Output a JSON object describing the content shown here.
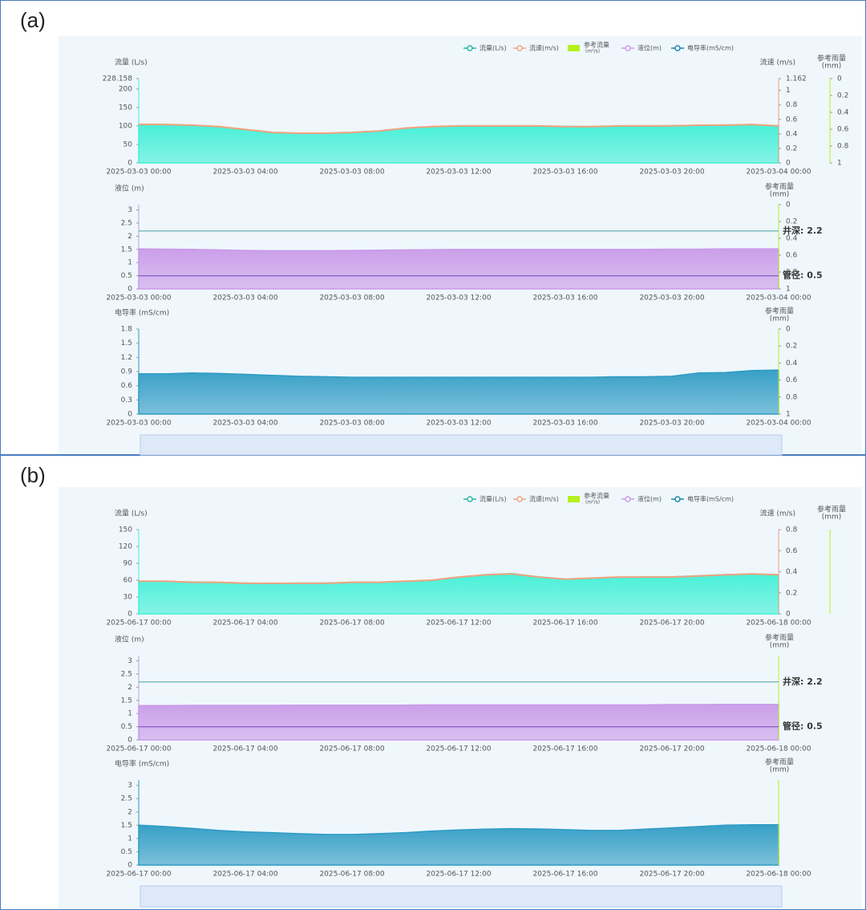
{
  "panels": [
    {
      "label": "(a)"
    },
    {
      "label": "(b)"
    }
  ],
  "legend": [
    {
      "name": "流量(L/s)",
      "color": "#2bb5a5",
      "icon": "line"
    },
    {
      "name": "流速(m/s)",
      "color": "#f0a27e",
      "icon": "line"
    },
    {
      "name": "参考流量",
      "unit": "(m³/s)",
      "color": "#b6f01e",
      "icon": "rect"
    },
    {
      "name": "液位(m)",
      "color": "#c99ae8",
      "icon": "line"
    },
    {
      "name": "电导率(mS/cm)",
      "color": "#1f86ab",
      "icon": "line"
    }
  ],
  "chart_data": [
    {
      "type": "area",
      "ylabel": "流量 (L/s)",
      "y2label": "流速 (m/s)",
      "y3label": "参考雨量",
      "y3unit": "(mm)",
      "y3_inverted": true,
      "y3lim": [
        0,
        1
      ],
      "y3ticks": [
        0,
        0.2,
        0.4,
        0.6,
        0.8,
        1
      ],
      "categories": [
        "2025-03-03 00:00",
        null,
        null,
        null,
        "2025-03-03 04:00",
        null,
        null,
        null,
        "2025-03-03 08:00",
        null,
        null,
        null,
        "2025-03-03 12:00",
        null,
        null,
        null,
        "2025-03-03 16:00",
        null,
        null,
        null,
        "2025-03-03 20:00",
        null,
        null,
        null,
        "2025-03-04 00:00"
      ],
      "ylim": [
        0,
        228.158
      ],
      "yticks": [
        0,
        50,
        100,
        150,
        200,
        228.158
      ],
      "y2lim": [
        0,
        1.162
      ],
      "y2ticks": [
        0,
        0.2,
        0.4,
        0.6,
        0.8,
        1,
        1.162
      ],
      "series": [
        {
          "color": "#3ff0d6",
          "fill": true,
          "values": [
            104,
            104,
            102,
            98,
            90,
            82,
            80,
            80,
            82,
            86,
            94,
            98,
            100,
            100,
            100,
            100,
            99,
            98,
            100,
            100,
            101,
            102,
            103,
            104,
            100
          ]
        },
        {
          "color": "#f0a27e",
          "fill": false,
          "axis": "y2",
          "values": [
            0.53,
            0.53,
            0.52,
            0.5,
            0.46,
            0.42,
            0.41,
            0.41,
            0.42,
            0.44,
            0.48,
            0.5,
            0.51,
            0.51,
            0.51,
            0.51,
            0.5,
            0.5,
            0.51,
            0.51,
            0.51,
            0.52,
            0.52,
            0.53,
            0.51
          ]
        }
      ]
    },
    {
      "type": "area",
      "ylabel": "液位 (m)",
      "y3label": "参考雨量",
      "y3unit": "(mm)",
      "y3_inverted": true,
      "y3lim": [
        0,
        1
      ],
      "y3ticks": [
        0,
        0.2,
        0.4,
        0.6,
        0.8,
        1
      ],
      "categories": [
        "2025-03-03 00:00",
        null,
        null,
        null,
        "2025-03-03 04:00",
        null,
        null,
        null,
        "2025-03-03 08:00",
        null,
        null,
        null,
        "2025-03-03 12:00",
        null,
        null,
        null,
        "2025-03-03 16:00",
        null,
        null,
        null,
        "2025-03-03 20:00",
        null,
        null,
        null,
        "2025-03-04 00:00"
      ],
      "ylim": [
        0,
        3.2
      ],
      "yticks": [
        0,
        0.5,
        1,
        1.5,
        2,
        2.5,
        3
      ],
      "series": [
        {
          "color": "#c99ae8",
          "fill": true,
          "values": [
            1.52,
            1.51,
            1.5,
            1.48,
            1.46,
            1.45,
            1.45,
            1.45,
            1.46,
            1.47,
            1.48,
            1.49,
            1.5,
            1.5,
            1.5,
            1.5,
            1.5,
            1.5,
            1.5,
            1.5,
            1.51,
            1.51,
            1.52,
            1.52,
            1.52
          ]
        }
      ],
      "reference_lines": [
        {
          "label": "井深: 2.2",
          "value": 2.2,
          "color": "#5aa9a9"
        },
        {
          "label": "管径: 0.5",
          "value": 0.5,
          "color": "#8a5cc8"
        }
      ]
    },
    {
      "type": "area",
      "ylabel": "电导率 (mS/cm)",
      "y3label": "参考雨量",
      "y3unit": "(mm)",
      "y3_inverted": true,
      "y3lim": [
        0,
        1
      ],
      "y3ticks": [
        0,
        0.2,
        0.4,
        0.6,
        0.8,
        1
      ],
      "categories": [
        "2025-03-03 00:00",
        null,
        null,
        null,
        "2025-03-03 04:00",
        null,
        null,
        null,
        "2025-03-03 08:00",
        null,
        null,
        null,
        "2025-03-03 12:00",
        null,
        null,
        null,
        "2025-03-03 16:00",
        null,
        null,
        null,
        "2025-03-03 20:00",
        null,
        null,
        null,
        "2025-03-04 00:00"
      ],
      "ylim": [
        0,
        1.8
      ],
      "yticks": [
        0,
        0.3,
        0.6,
        0.9,
        1.2,
        1.5,
        1.8
      ],
      "series": [
        {
          "color": "#2e9bc4",
          "fill": true,
          "values": [
            0.85,
            0.85,
            0.87,
            0.86,
            0.84,
            0.82,
            0.8,
            0.79,
            0.78,
            0.78,
            0.78,
            0.78,
            0.78,
            0.78,
            0.78,
            0.78,
            0.78,
            0.78,
            0.79,
            0.79,
            0.8,
            0.87,
            0.88,
            0.92,
            0.93
          ]
        }
      ]
    },
    {
      "type": "area",
      "ylabel": "流量 (L/s)",
      "y2label": "流速 (m/s)",
      "y3label": "参考雨量",
      "y3unit": "(mm)",
      "y3_inverted": true,
      "categories": [
        "2025-06-17 00:00",
        null,
        null,
        null,
        "2025-06-17 04:00",
        null,
        null,
        null,
        "2025-06-17 08:00",
        null,
        null,
        null,
        "2025-06-17 12:00",
        null,
        null,
        null,
        "2025-06-17 16:00",
        null,
        null,
        null,
        "2025-06-17 20:00",
        null,
        null,
        null,
        "2025-06-18 00:00"
      ],
      "ylim": [
        0,
        150
      ],
      "yticks": [
        0,
        30,
        60,
        90,
        120,
        150
      ],
      "y2lim": [
        0,
        0.8
      ],
      "y2ticks": [
        0,
        0.2,
        0.4,
        0.6,
        0.8
      ],
      "series": [
        {
          "color": "#3ff0d6",
          "fill": true,
          "values": [
            58,
            58,
            57,
            56,
            55,
            54,
            55,
            55,
            56,
            56,
            58,
            60,
            65,
            70,
            72,
            66,
            62,
            63,
            65,
            66,
            66,
            68,
            70,
            71,
            70
          ]
        },
        {
          "color": "#f0a27e",
          "fill": false,
          "axis": "y2",
          "values": [
            0.31,
            0.31,
            0.3,
            0.3,
            0.29,
            0.29,
            0.29,
            0.29,
            0.3,
            0.3,
            0.31,
            0.32,
            0.35,
            0.37,
            0.38,
            0.35,
            0.33,
            0.34,
            0.35,
            0.35,
            0.35,
            0.36,
            0.37,
            0.38,
            0.37
          ]
        }
      ]
    },
    {
      "type": "area",
      "ylabel": "液位 (m)",
      "y3label": "参考雨量",
      "y3unit": "(mm)",
      "y3_inverted": true,
      "categories": [
        "2025-06-17 00:00",
        null,
        null,
        null,
        "2025-06-17 04:00",
        null,
        null,
        null,
        "2025-06-17 08:00",
        null,
        null,
        null,
        "2025-06-17 12:00",
        null,
        null,
        null,
        "2025-06-17 16:00",
        null,
        null,
        null,
        "2025-06-17 20:00",
        null,
        null,
        null,
        "2025-06-18 00:00"
      ],
      "ylim": [
        0,
        3.2
      ],
      "yticks": [
        0,
        0.5,
        1,
        1.5,
        2,
        2.5,
        3
      ],
      "series": [
        {
          "color": "#c99ae8",
          "fill": true,
          "values": [
            1.3,
            1.3,
            1.31,
            1.31,
            1.31,
            1.31,
            1.32,
            1.32,
            1.32,
            1.32,
            1.32,
            1.33,
            1.33,
            1.33,
            1.33,
            1.33,
            1.33,
            1.33,
            1.33,
            1.33,
            1.34,
            1.34,
            1.35,
            1.35,
            1.35
          ]
        }
      ],
      "reference_lines": [
        {
          "label": "井深: 2.2",
          "value": 2.2,
          "color": "#5aa9a9"
        },
        {
          "label": "管径: 0.5",
          "value": 0.5,
          "color": "#8a5cc8"
        }
      ]
    },
    {
      "type": "area",
      "ylabel": "电导率 (mS/cm)",
      "y3label": "参考雨量",
      "y3unit": "(mm)",
      "y3_inverted": true,
      "categories": [
        "2025-06-17 00:00",
        null,
        null,
        null,
        "2025-06-17 04:00",
        null,
        null,
        null,
        "2025-06-17 08:00",
        null,
        null,
        null,
        "2025-06-17 12:00",
        null,
        null,
        null,
        "2025-06-17 16:00",
        null,
        null,
        null,
        "2025-06-17 20:00",
        null,
        null,
        null,
        "2025-06-18 00:00"
      ],
      "ylim": [
        0,
        3.2
      ],
      "yticks": [
        0,
        0.5,
        1,
        1.5,
        2,
        2.5,
        3
      ],
      "series": [
        {
          "color": "#2e9bc4",
          "fill": true,
          "values": [
            1.5,
            1.45,
            1.38,
            1.3,
            1.25,
            1.22,
            1.18,
            1.15,
            1.15,
            1.18,
            1.22,
            1.28,
            1.32,
            1.35,
            1.37,
            1.36,
            1.33,
            1.3,
            1.3,
            1.35,
            1.4,
            1.45,
            1.5,
            1.52,
            1.52
          ]
        }
      ]
    }
  ]
}
